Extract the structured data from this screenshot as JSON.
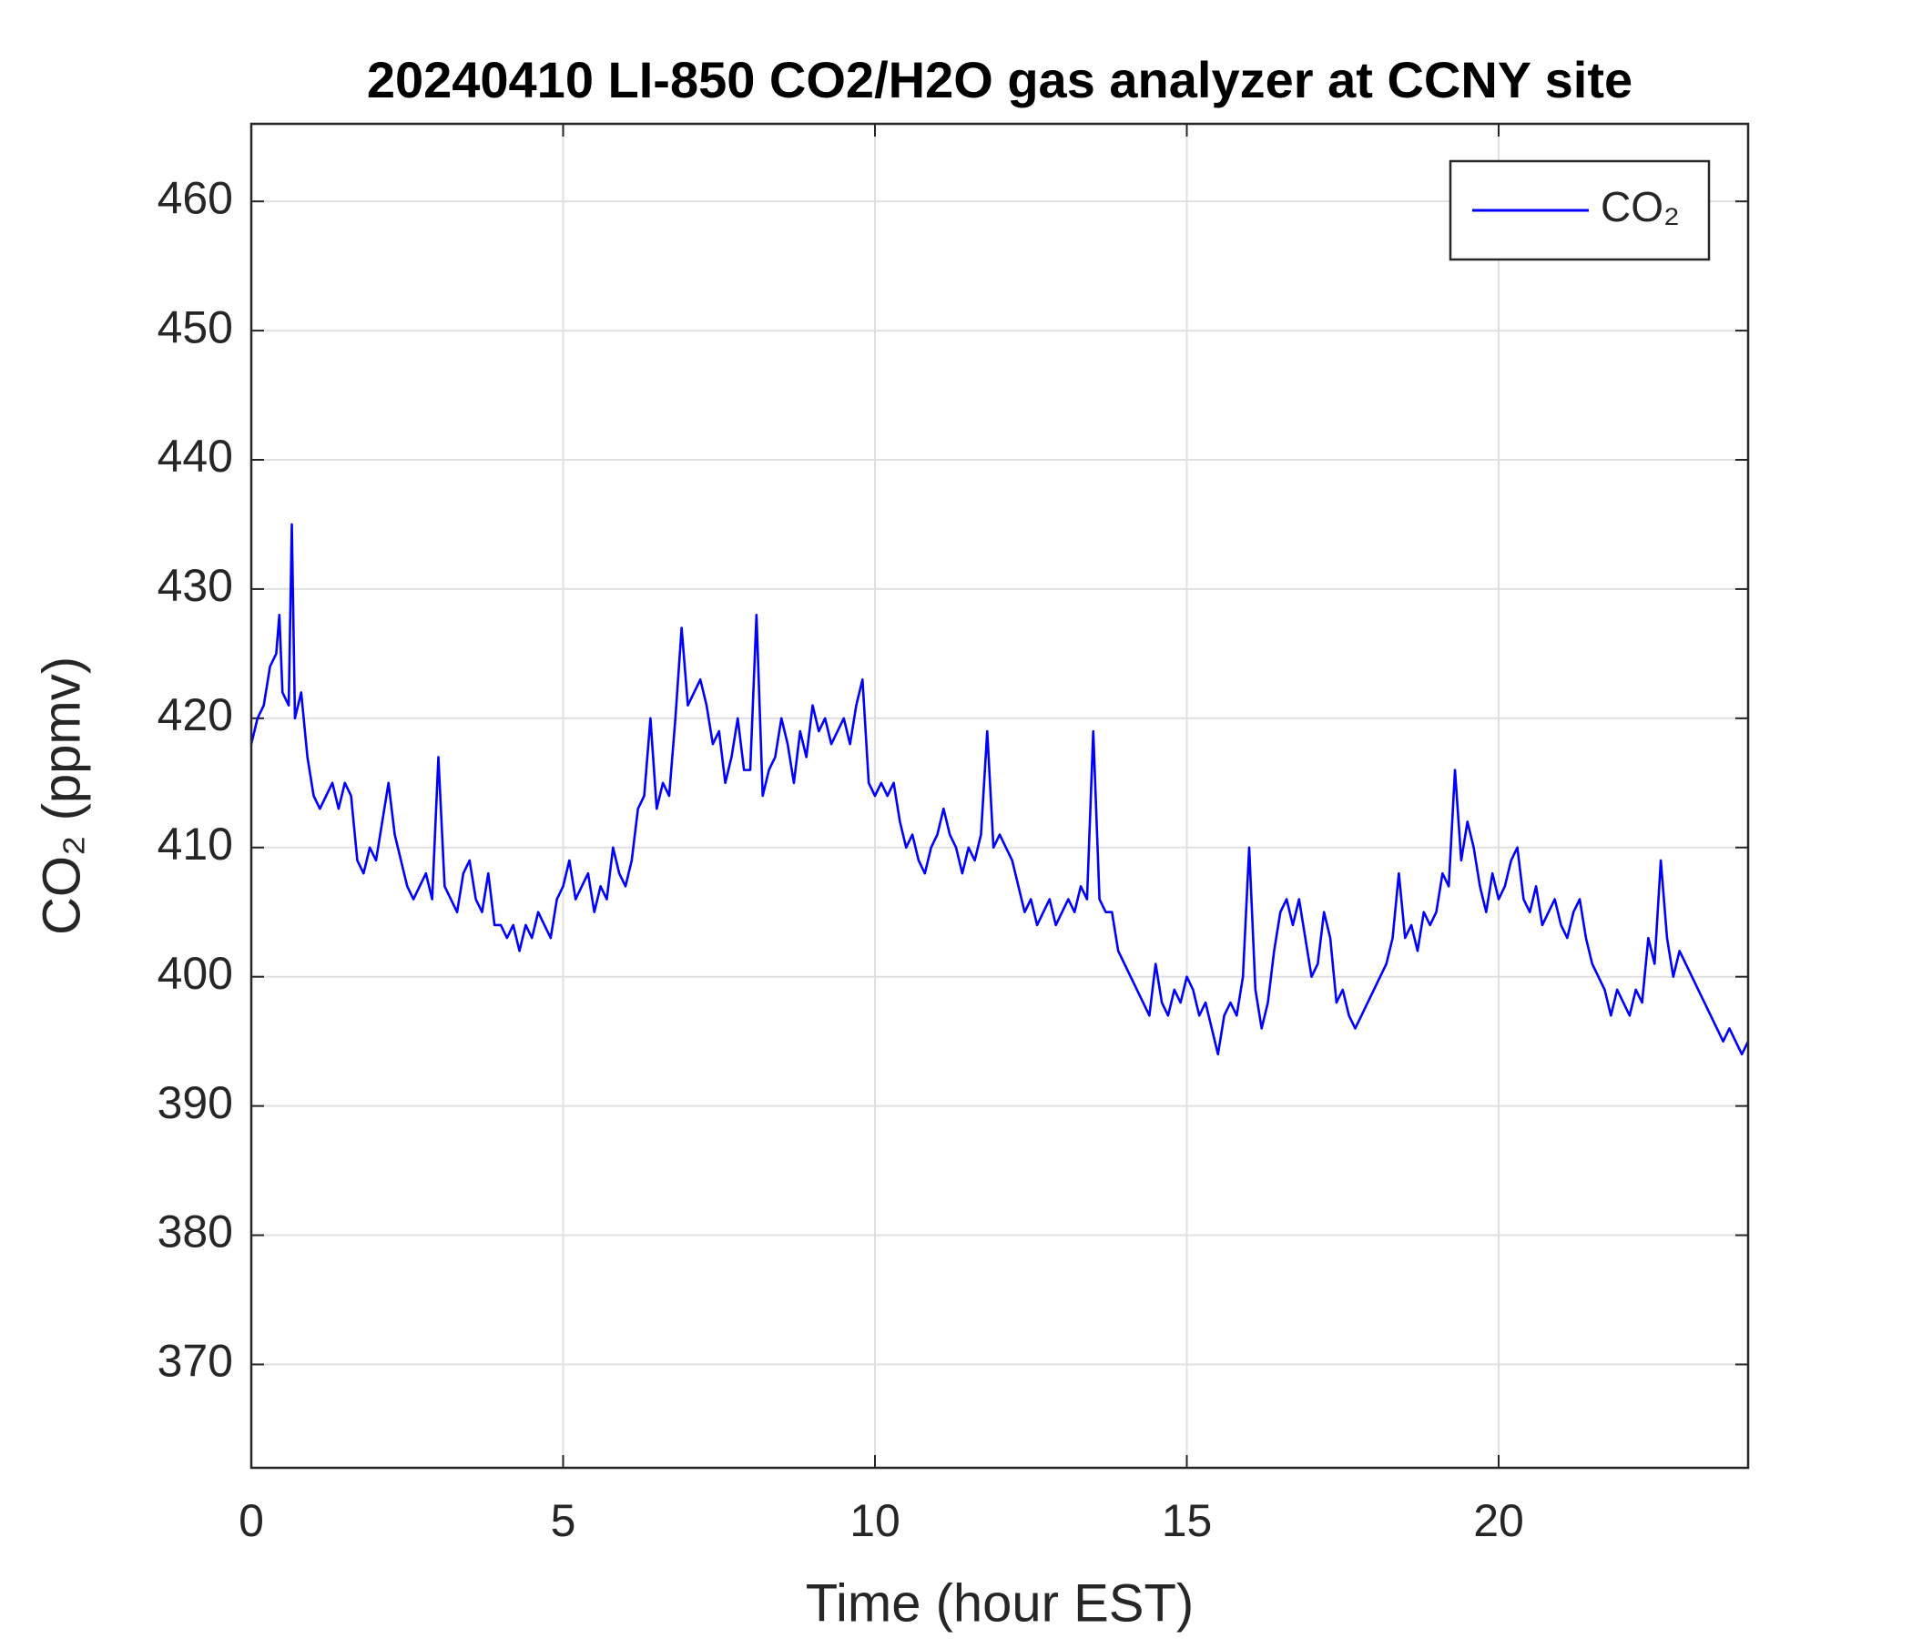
{
  "chart_data": {
    "type": "line",
    "title": "20240410 LI-850 CO2/H2O gas analyzer at CCNY site",
    "xlabel": "Time (hour EST)",
    "ylabel": "CO₂ (ppmv)",
    "legend": "upper right",
    "grid": true,
    "xlim": [
      0,
      24
    ],
    "ylim": [
      362,
      466
    ],
    "xticks": [
      0,
      5,
      10,
      15,
      20
    ],
    "yticks": [
      370,
      380,
      390,
      400,
      410,
      420,
      430,
      440,
      450,
      460
    ],
    "x": [
      0,
      0.1,
      0.2,
      0.3,
      0.4,
      0.45,
      0.5,
      0.6,
      0.65,
      0.7,
      0.8,
      0.9,
      1.0,
      1.1,
      1.2,
      1.3,
      1.4,
      1.5,
      1.6,
      1.7,
      1.8,
      1.9,
      2.0,
      2.1,
      2.2,
      2.3,
      2.4,
      2.5,
      2.6,
      2.7,
      2.8,
      2.9,
      3.0,
      3.1,
      3.2,
      3.3,
      3.4,
      3.5,
      3.6,
      3.7,
      3.8,
      3.9,
      4.0,
      4.1,
      4.2,
      4.3,
      4.4,
      4.5,
      4.6,
      4.7,
      4.8,
      4.9,
      5.0,
      5.1,
      5.2,
      5.3,
      5.4,
      5.5,
      5.6,
      5.7,
      5.8,
      5.9,
      6.0,
      6.1,
      6.2,
      6.3,
      6.4,
      6.5,
      6.6,
      6.7,
      6.8,
      6.9,
      7.0,
      7.1,
      7.2,
      7.3,
      7.4,
      7.5,
      7.6,
      7.7,
      7.8,
      7.9,
      8.0,
      8.1,
      8.2,
      8.3,
      8.4,
      8.5,
      8.6,
      8.7,
      8.8,
      8.9,
      9.0,
      9.1,
      9.2,
      9.3,
      9.4,
      9.5,
      9.6,
      9.7,
      9.8,
      9.9,
      10.0,
      10.1,
      10.2,
      10.3,
      10.4,
      10.5,
      10.6,
      10.7,
      10.8,
      10.9,
      11.0,
      11.1,
      11.2,
      11.3,
      11.4,
      11.5,
      11.6,
      11.7,
      11.8,
      11.9,
      12.0,
      12.1,
      12.2,
      12.3,
      12.4,
      12.5,
      12.6,
      12.7,
      12.8,
      12.9,
      13.0,
      13.1,
      13.2,
      13.3,
      13.4,
      13.5,
      13.6,
      13.7,
      13.8,
      13.9,
      14.0,
      14.1,
      14.2,
      14.3,
      14.4,
      14.5,
      14.6,
      14.7,
      14.8,
      14.9,
      15.0,
      15.1,
      15.2,
      15.3,
      15.4,
      15.5,
      15.6,
      15.7,
      15.8,
      15.9,
      16.0,
      16.1,
      16.2,
      16.3,
      16.4,
      16.5,
      16.6,
      16.7,
      16.8,
      16.9,
      17.0,
      17.1,
      17.2,
      17.3,
      17.4,
      17.5,
      17.6,
      17.7,
      17.8,
      17.9,
      18.0,
      18.1,
      18.2,
      18.3,
      18.4,
      18.5,
      18.6,
      18.7,
      18.8,
      18.9,
      19.0,
      19.1,
      19.2,
      19.3,
      19.4,
      19.5,
      19.6,
      19.7,
      19.8,
      19.9,
      20.0,
      20.1,
      20.2,
      20.3,
      20.4,
      20.5,
      20.6,
      20.7,
      20.8,
      20.9,
      21.0,
      21.1,
      21.2,
      21.3,
      21.4,
      21.5,
      21.6,
      21.7,
      21.8,
      21.9,
      22.0,
      22.1,
      22.2,
      22.3,
      22.4,
      22.5,
      22.6,
      22.7,
      22.8,
      22.9,
      23.0,
      23.1,
      23.2,
      23.3,
      23.4,
      23.5,
      23.6,
      23.7,
      23.8,
      23.9,
      24.0
    ],
    "series": [
      {
        "name": "CO₂",
        "color": "#0000ff",
        "values": [
          418,
          420,
          421,
          424,
          425,
          428,
          422,
          421,
          435,
          420,
          422,
          417,
          414,
          413,
          414,
          415,
          413,
          415,
          414,
          409,
          408,
          410,
          409,
          412,
          415,
          411,
          409,
          407,
          406,
          407,
          408,
          406,
          417,
          407,
          406,
          405,
          408,
          409,
          406,
          405,
          408,
          404,
          404,
          403,
          404,
          402,
          404,
          403,
          405,
          404,
          403,
          406,
          407,
          409,
          406,
          407,
          408,
          405,
          407,
          406,
          410,
          408,
          407,
          409,
          413,
          414,
          420,
          413,
          415,
          414,
          420,
          427,
          421,
          422,
          423,
          421,
          418,
          419,
          415,
          417,
          420,
          416,
          416,
          428,
          414,
          416,
          417,
          420,
          418,
          415,
          419,
          417,
          421,
          419,
          420,
          418,
          419,
          420,
          418,
          421,
          423,
          415,
          414,
          415,
          414,
          415,
          412,
          410,
          411,
          409,
          408,
          410,
          411,
          413,
          411,
          410,
          408,
          410,
          409,
          411,
          419,
          410,
          411,
          410,
          409,
          407,
          405,
          406,
          404,
          405,
          406,
          404,
          405,
          406,
          405,
          407,
          406,
          419,
          406,
          405,
          405,
          402,
          401,
          400,
          399,
          398,
          397,
          401,
          398,
          397,
          399,
          398,
          400,
          399,
          397,
          398,
          396,
          394,
          397,
          398,
          397,
          400,
          410,
          399,
          396,
          398,
          402,
          405,
          406,
          404,
          406,
          403,
          400,
          401,
          405,
          403,
          398,
          399,
          397,
          396,
          397,
          398,
          399,
          400,
          401,
          403,
          408,
          403,
          404,
          402,
          405,
          404,
          405,
          408,
          407,
          416,
          409,
          412,
          410,
          407,
          405,
          408,
          406,
          407,
          409,
          410,
          406,
          405,
          407,
          404,
          405,
          406,
          404,
          403,
          405,
          406,
          403,
          401,
          400,
          399,
          397,
          399,
          398,
          397,
          399,
          398,
          403,
          401,
          409,
          403,
          400,
          402,
          401,
          400,
          399,
          398,
          397,
          396,
          395,
          396,
          395,
          394,
          395
        ]
      }
    ]
  }
}
